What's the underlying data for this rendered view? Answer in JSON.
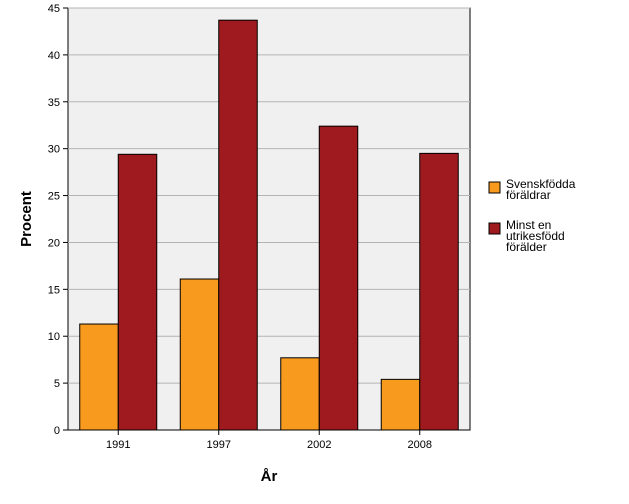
{
  "chart_data": {
    "type": "bar",
    "title": "",
    "xlabel": "År",
    "ylabel": "Procent",
    "categories": [
      "1991",
      "1997",
      "2002",
      "2008"
    ],
    "ylim": [
      0,
      45
    ],
    "yticks": [
      "0",
      "5",
      "10",
      "15",
      "20",
      "25",
      "30",
      "35",
      "40",
      "45"
    ],
    "grid": true,
    "legend_position": "right",
    "series": [
      {
        "name": "Svenskfödda föräldrar",
        "label_lines": [
          "Svenskfödda",
          "föräldrar"
        ],
        "color": "#F79A1E",
        "values": [
          11.3,
          16.1,
          7.7,
          5.4
        ]
      },
      {
        "name": "Minst en utrikesfödd förälder",
        "label_lines": [
          "Minst en",
          "utrikesfödd",
          "förälder"
        ],
        "color": "#9E1A1E",
        "values": [
          29.4,
          43.7,
          32.4,
          29.5
        ]
      }
    ],
    "plot_background": "#F0F0F0",
    "gridline_color": "#B4B4B4"
  }
}
